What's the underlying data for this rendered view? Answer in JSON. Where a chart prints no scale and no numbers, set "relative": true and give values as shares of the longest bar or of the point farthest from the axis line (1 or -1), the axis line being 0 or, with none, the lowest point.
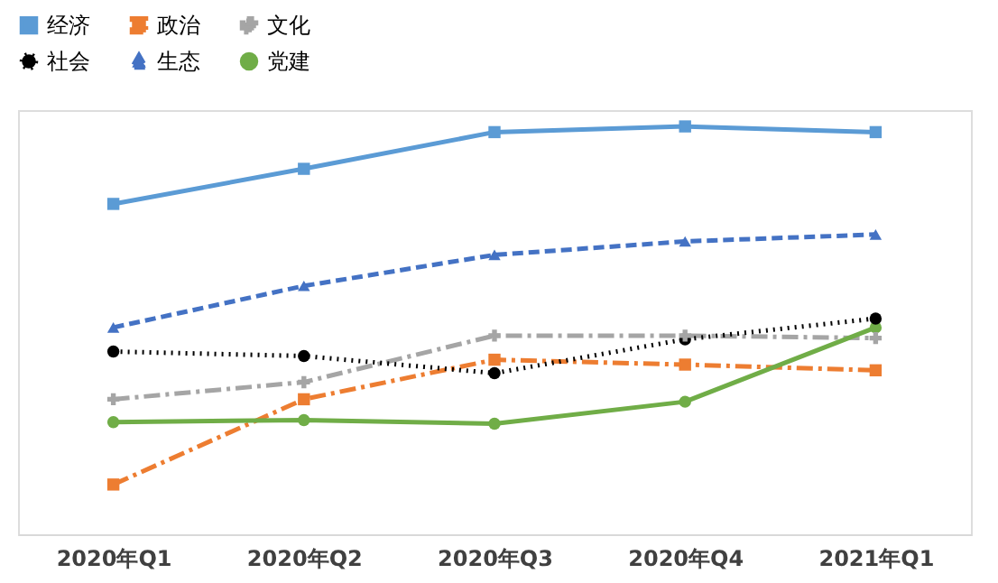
{
  "chart_data": {
    "type": "line",
    "relative": true,
    "categories": [
      "2020年Q1",
      "2020年Q2",
      "2020年Q3",
      "2020年Q4",
      "2021年Q1"
    ],
    "legend": "top left",
    "grid": false,
    "series": [
      {
        "name": "经济",
        "color": "#5b9bd5",
        "marker": "square",
        "line_style": "solid",
        "values": [
          0.81,
          0.896,
          0.986,
          1,
          0.986
        ]
      },
      {
        "name": "政治",
        "color": "#ed7d31",
        "marker": "square",
        "line_style": "dashdot",
        "values": [
          0.122,
          0.331,
          0.428,
          0.416,
          0.402
        ]
      },
      {
        "name": "文化",
        "color": "#a5a5a5",
        "marker": "cross",
        "line_style": "dashdot",
        "values": [
          0.331,
          0.373,
          0.487,
          0.487,
          0.481
        ]
      },
      {
        "name": "社会",
        "color": "#000000",
        "marker": "circle",
        "line_style": "dotted",
        "values": [
          0.448,
          0.437,
          0.395,
          0.478,
          0.529
        ]
      },
      {
        "name": "生态",
        "color": "#4472c4",
        "marker": "triangle",
        "line_style": "dashed",
        "values": [
          0.507,
          0.609,
          0.685,
          0.718,
          0.735
        ]
      },
      {
        "name": "党建",
        "color": "#70ad47",
        "marker": "circle",
        "line_style": "solid",
        "values": [
          0.275,
          0.28,
          0.271,
          0.325,
          0.507
        ]
      }
    ]
  }
}
